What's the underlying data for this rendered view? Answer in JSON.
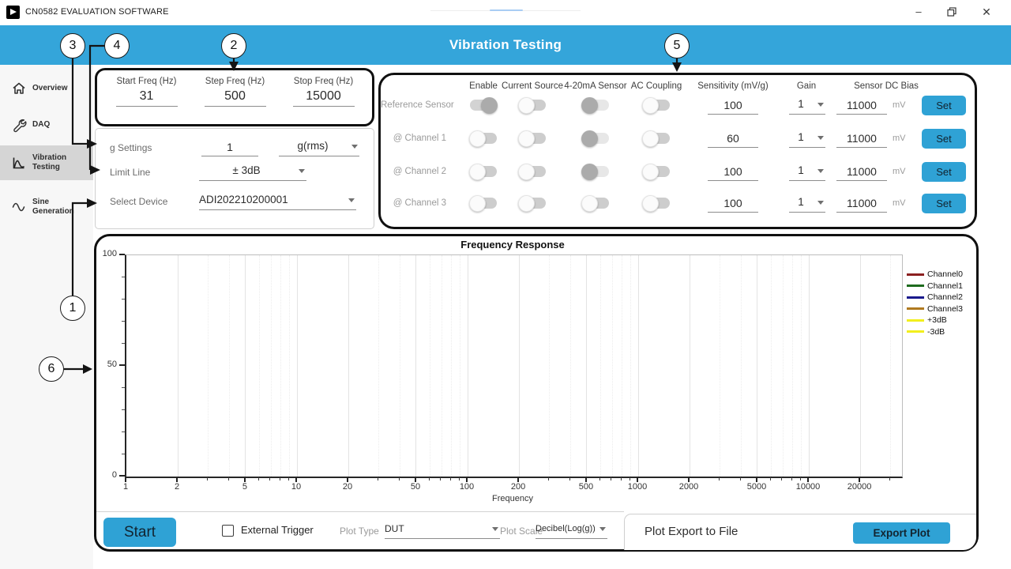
{
  "window": {
    "title": "CN0582 EVALUATION SOFTWARE",
    "controls": {
      "minimize": "–",
      "close": "✕"
    }
  },
  "banner": {
    "title": "Vibration Testing"
  },
  "sidebar": {
    "items": [
      {
        "label": "Overview",
        "icon": "home-icon",
        "selected": false
      },
      {
        "label": "DAQ",
        "icon": "wrench-icon",
        "selected": false
      },
      {
        "label": "Vibration Testing",
        "icon": "vibration-plot-icon",
        "selected": true
      },
      {
        "label": "Sine Generation",
        "icon": "sine-wave-icon",
        "selected": false
      }
    ]
  },
  "freq_panel": {
    "fields": [
      {
        "label": "Start Freq (Hz)",
        "value": "31"
      },
      {
        "label": "Step Freq (Hz)",
        "value": "500"
      },
      {
        "label": "Stop Freq (Hz)",
        "value": "15000"
      }
    ]
  },
  "settings_panel": {
    "g_settings_label": "g Settings",
    "g_value": "1",
    "g_unit": "g(rms)",
    "limit_line_label": "Limit Line",
    "limit_line_value": "± 3dB",
    "select_device_label": "Select Device",
    "device_value": "ADI202210200001"
  },
  "sensor_panel": {
    "columns": [
      "Enable",
      "Current Source",
      "4-20mA Sensor",
      "AC Coupling",
      "Sensitivity (mV/g)",
      "Gain",
      "Sensor DC Bias"
    ],
    "mv_label": "mV",
    "set_label": "Set",
    "rows": [
      {
        "label": "Reference Sensor",
        "toggles": [
          "on",
          "off",
          "gray",
          "off"
        ],
        "sensitivity": "100",
        "gain": "1",
        "bias": "11000"
      },
      {
        "label": "@ Channel 1",
        "toggles": [
          "off",
          "off",
          "gray",
          "off"
        ],
        "sensitivity": "60",
        "gain": "1",
        "bias": "11000"
      },
      {
        "label": "@ Channel 2",
        "toggles": [
          "off",
          "off",
          "gray",
          "off"
        ],
        "sensitivity": "100",
        "gain": "1",
        "bias": "11000"
      },
      {
        "label": "@ Channel 3",
        "toggles": [
          "off",
          "off",
          "off",
          "off"
        ],
        "sensitivity": "100",
        "gain": "1",
        "bias": "11000"
      }
    ]
  },
  "chart_data": {
    "type": "line",
    "title": "Frequency Response",
    "xlabel": "Frequency",
    "ylabel": "",
    "x_scale": "log",
    "xlim": [
      1,
      35000
    ],
    "ylim": [
      0,
      100
    ],
    "x_ticks": [
      1,
      2,
      5,
      10,
      20,
      50,
      100,
      200,
      500,
      1000,
      2000,
      5000,
      10000,
      20000
    ],
    "y_ticks": [
      0,
      50,
      100
    ],
    "grid": true,
    "legend_position": "right-outside",
    "series": [
      {
        "name": "Channel0",
        "color": "#8b2020",
        "values": []
      },
      {
        "name": "Channel1",
        "color": "#1e6b1e",
        "values": []
      },
      {
        "name": "Channel2",
        "color": "#1a1a8c",
        "values": []
      },
      {
        "name": "Channel3",
        "color": "#b07a20",
        "values": []
      },
      {
        "name": "+3dB",
        "color": "#f2ef1d",
        "values": []
      },
      {
        "name": "-3dB",
        "color": "#f2ef1d",
        "values": []
      }
    ]
  },
  "bottom_bar": {
    "start_label": "Start",
    "external_trigger_label": "External Trigger",
    "external_trigger_checked": false,
    "plot_type_label": "Plot Type",
    "plot_type_value": "DUT",
    "plot_scale_label": "Plot Scale",
    "plot_scale_value": "Decibel(Log(g))",
    "export_title": "Plot Export to File",
    "export_button": "Export Plot"
  },
  "callouts": [
    "1",
    "2",
    "3",
    "4",
    "5",
    "6"
  ],
  "colors": {
    "accent_blue": "#34a5da",
    "button_blue": "#2fa2d5",
    "annotation_black": "#101010",
    "sidebar_selected": "#d5d5d5"
  }
}
